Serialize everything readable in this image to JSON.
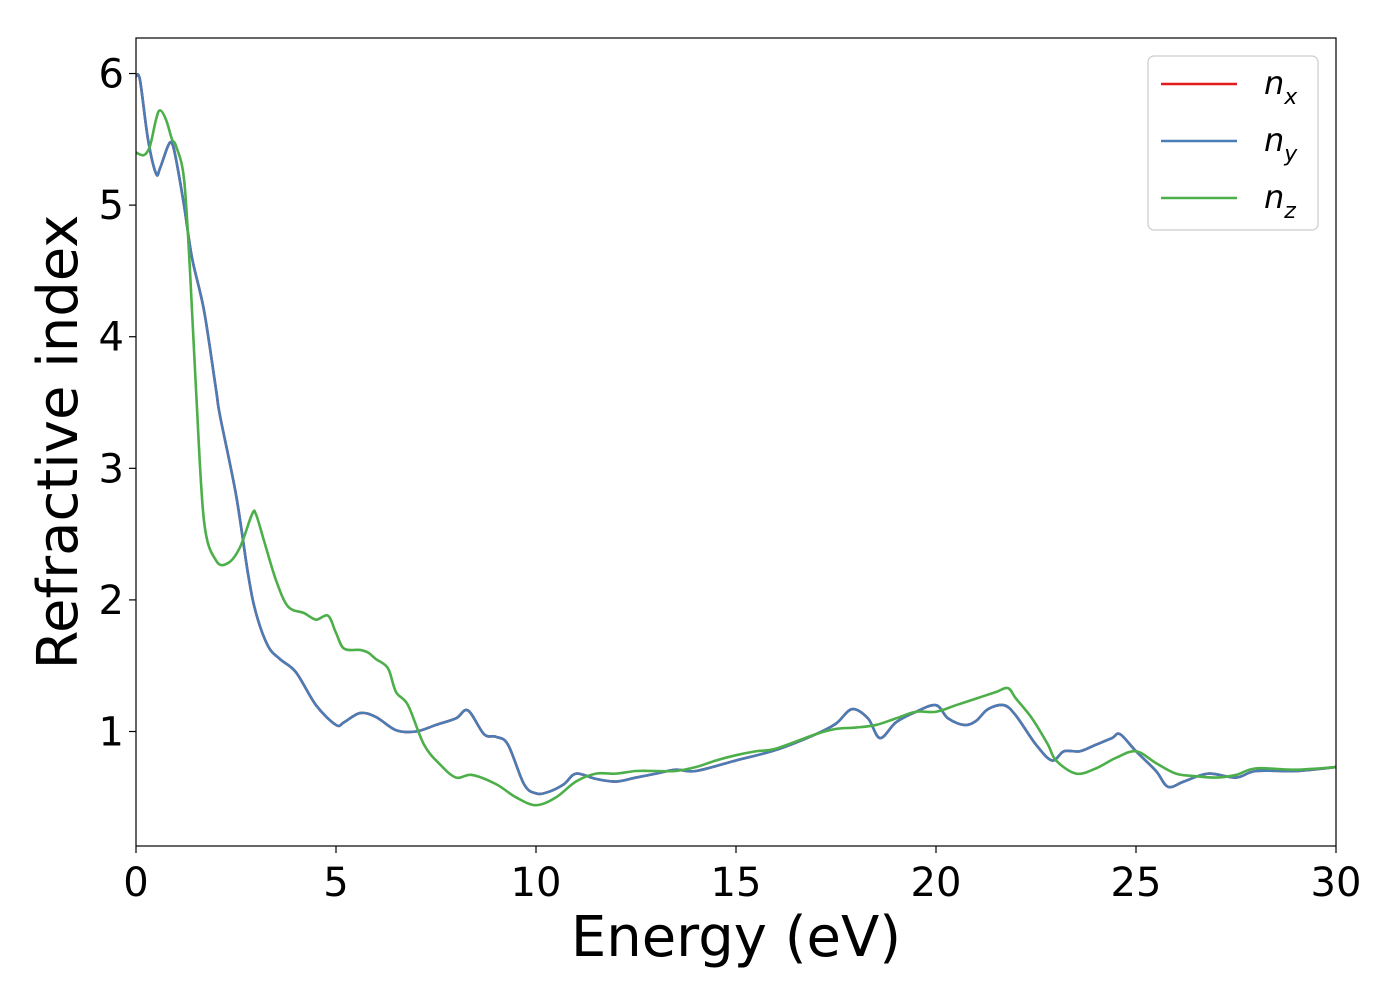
{
  "chart_data": {
    "type": "line",
    "xlabel": "Energy (eV)",
    "ylabel": "Refractive index",
    "xlim": [
      0,
      30
    ],
    "ylim": [
      0.13,
      6.27
    ],
    "xticks": [
      "0",
      "5",
      "10",
      "15",
      "20",
      "25",
      "30"
    ],
    "yticks": [
      "1",
      "2",
      "3",
      "4",
      "5",
      "6"
    ],
    "grid": false,
    "legend_position": "top-right",
    "series": [
      {
        "name": "n_x",
        "label_base": "n",
        "label_sub": "x",
        "color": "#e41a1c",
        "x": [
          0.0,
          0.1,
          0.3,
          0.5,
          0.6,
          0.8,
          0.9,
          1.0,
          1.2,
          1.4,
          1.7,
          2.0,
          2.1,
          2.5,
          2.8,
          3.0,
          3.3,
          3.6,
          4.0,
          4.5,
          5.0,
          5.2,
          5.6,
          6.0,
          6.5,
          7.0,
          7.5,
          8.0,
          8.3,
          8.7,
          9.0,
          9.3,
          9.7,
          10.0,
          10.3,
          10.7,
          11.0,
          11.5,
          12.0,
          12.5,
          13.0,
          13.5,
          14.0,
          15.0,
          16.0,
          17.0,
          17.5,
          17.9,
          18.3,
          18.6,
          19.0,
          19.5,
          20.0,
          20.3,
          20.7,
          21.0,
          21.3,
          21.7,
          22.0,
          22.5,
          22.9,
          23.2,
          23.6,
          24.0,
          24.4,
          24.6,
          25.0,
          25.5,
          25.8,
          26.2,
          26.8,
          27.5,
          28.0,
          29.0,
          30.0
        ],
        "values": [
          5.98,
          5.95,
          5.5,
          5.24,
          5.28,
          5.45,
          5.47,
          5.35,
          5.0,
          4.6,
          4.2,
          3.6,
          3.4,
          2.8,
          2.2,
          1.9,
          1.65,
          1.55,
          1.45,
          1.2,
          1.05,
          1.07,
          1.14,
          1.11,
          1.01,
          1.0,
          1.05,
          1.1,
          1.16,
          0.98,
          0.96,
          0.9,
          0.6,
          0.53,
          0.54,
          0.6,
          0.68,
          0.64,
          0.62,
          0.65,
          0.68,
          0.71,
          0.7,
          0.78,
          0.86,
          0.98,
          1.06,
          1.17,
          1.1,
          0.95,
          1.07,
          1.15,
          1.2,
          1.1,
          1.05,
          1.08,
          1.17,
          1.2,
          1.12,
          0.9,
          0.78,
          0.85,
          0.85,
          0.9,
          0.95,
          0.98,
          0.85,
          0.7,
          0.58,
          0.62,
          0.68,
          0.65,
          0.7,
          0.7,
          0.73
        ]
      },
      {
        "name": "n_y",
        "label_base": "n",
        "label_sub": "y",
        "color": "#4a7cb5",
        "x": [
          0.0,
          0.1,
          0.3,
          0.5,
          0.6,
          0.8,
          0.9,
          1.0,
          1.2,
          1.4,
          1.7,
          2.0,
          2.1,
          2.5,
          2.8,
          3.0,
          3.3,
          3.6,
          4.0,
          4.5,
          5.0,
          5.2,
          5.6,
          6.0,
          6.5,
          7.0,
          7.5,
          8.0,
          8.3,
          8.7,
          9.0,
          9.3,
          9.7,
          10.0,
          10.3,
          10.7,
          11.0,
          11.5,
          12.0,
          12.5,
          13.0,
          13.5,
          14.0,
          15.0,
          16.0,
          17.0,
          17.5,
          17.9,
          18.3,
          18.6,
          19.0,
          19.5,
          20.0,
          20.3,
          20.7,
          21.0,
          21.3,
          21.7,
          22.0,
          22.5,
          22.9,
          23.2,
          23.6,
          24.0,
          24.4,
          24.6,
          25.0,
          25.5,
          25.8,
          26.2,
          26.8,
          27.5,
          28.0,
          29.0,
          30.0
        ],
        "values": [
          5.98,
          5.95,
          5.5,
          5.24,
          5.28,
          5.45,
          5.47,
          5.35,
          5.0,
          4.6,
          4.2,
          3.6,
          3.4,
          2.8,
          2.2,
          1.9,
          1.65,
          1.55,
          1.45,
          1.2,
          1.05,
          1.07,
          1.14,
          1.11,
          1.01,
          1.0,
          1.05,
          1.1,
          1.16,
          0.98,
          0.96,
          0.9,
          0.6,
          0.53,
          0.54,
          0.6,
          0.68,
          0.64,
          0.62,
          0.65,
          0.68,
          0.71,
          0.7,
          0.78,
          0.86,
          0.98,
          1.06,
          1.17,
          1.1,
          0.95,
          1.07,
          1.15,
          1.2,
          1.1,
          1.05,
          1.08,
          1.17,
          1.2,
          1.12,
          0.9,
          0.78,
          0.85,
          0.85,
          0.9,
          0.95,
          0.98,
          0.85,
          0.7,
          0.58,
          0.62,
          0.68,
          0.65,
          0.7,
          0.7,
          0.73
        ]
      },
      {
        "name": "n_z",
        "label_base": "n",
        "label_sub": "z",
        "color": "#4daf4a",
        "x": [
          0.0,
          0.2,
          0.35,
          0.5,
          0.6,
          0.75,
          0.9,
          1.0,
          1.2,
          1.35,
          1.5,
          1.7,
          2.0,
          2.3,
          2.6,
          2.9,
          3.0,
          3.2,
          3.5,
          3.8,
          4.2,
          4.5,
          4.8,
          5.0,
          5.2,
          5.6,
          5.8,
          6.0,
          6.3,
          6.5,
          6.8,
          7.2,
          7.6,
          8.0,
          8.4,
          9.0,
          9.5,
          10.0,
          10.5,
          11.0,
          11.5,
          12.0,
          12.5,
          13.0,
          13.5,
          14.0,
          14.5,
          15.0,
          15.5,
          16.0,
          17.0,
          17.5,
          18.0,
          18.5,
          19.0,
          19.5,
          20.0,
          20.5,
          21.0,
          21.5,
          21.8,
          22.0,
          22.4,
          22.8,
          23.0,
          23.5,
          24.0,
          24.5,
          25.0,
          25.5,
          26.0,
          26.5,
          27.0,
          27.5,
          28.0,
          29.0,
          30.0
        ],
        "values": [
          5.4,
          5.38,
          5.45,
          5.65,
          5.72,
          5.65,
          5.5,
          5.45,
          5.2,
          4.5,
          3.6,
          2.6,
          2.3,
          2.28,
          2.4,
          2.65,
          2.65,
          2.45,
          2.15,
          1.95,
          1.9,
          1.85,
          1.88,
          1.75,
          1.63,
          1.62,
          1.6,
          1.55,
          1.48,
          1.3,
          1.2,
          0.9,
          0.75,
          0.65,
          0.67,
          0.6,
          0.5,
          0.44,
          0.5,
          0.62,
          0.68,
          0.68,
          0.7,
          0.7,
          0.7,
          0.73,
          0.78,
          0.82,
          0.85,
          0.87,
          0.98,
          1.02,
          1.03,
          1.05,
          1.1,
          1.15,
          1.15,
          1.2,
          1.25,
          1.3,
          1.33,
          1.25,
          1.1,
          0.9,
          0.78,
          0.68,
          0.72,
          0.8,
          0.85,
          0.76,
          0.68,
          0.66,
          0.65,
          0.67,
          0.72,
          0.71,
          0.73
        ]
      }
    ]
  }
}
